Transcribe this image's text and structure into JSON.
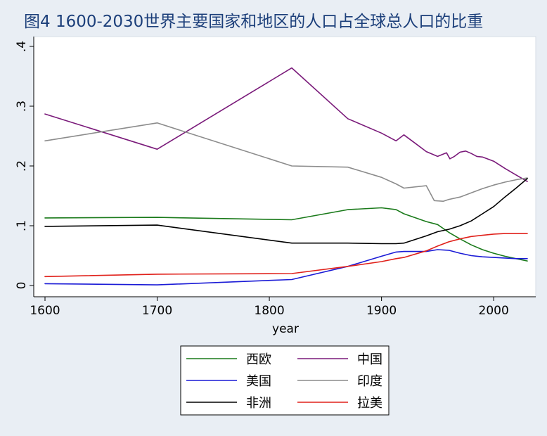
{
  "chart_data": {
    "type": "line",
    "title": "图4   1600-2030世界主要国家和地区的人口占全球总人口的比重",
    "xlabel": "year",
    "ylabel": "",
    "xlim": [
      1600,
      2030
    ],
    "ylim": [
      0,
      0.4
    ],
    "x_ticks": [
      1600,
      1700,
      1800,
      1900,
      2000
    ],
    "y_ticks": [
      0,
      0.1,
      0.2,
      0.3,
      0.4
    ],
    "y_tick_labels": [
      "0",
      ".1",
      ".2",
      ".3",
      ".4"
    ],
    "grid": false,
    "legend_position": "bottom",
    "series": [
      {
        "name": "西欧",
        "color": "#1a7a1a",
        "points": [
          [
            1600,
            0.113
          ],
          [
            1700,
            0.114
          ],
          [
            1820,
            0.11
          ],
          [
            1870,
            0.127
          ],
          [
            1900,
            0.13
          ],
          [
            1913,
            0.127
          ],
          [
            1920,
            0.12
          ],
          [
            1940,
            0.107
          ],
          [
            1950,
            0.102
          ],
          [
            1960,
            0.089
          ],
          [
            1970,
            0.078
          ],
          [
            1980,
            0.068
          ],
          [
            1990,
            0.06
          ],
          [
            2000,
            0.054
          ],
          [
            2010,
            0.049
          ],
          [
            2020,
            0.045
          ],
          [
            2030,
            0.041
          ]
        ]
      },
      {
        "name": "中国",
        "color": "#7a1a7a",
        "points": [
          [
            1600,
            0.287
          ],
          [
            1700,
            0.228
          ],
          [
            1820,
            0.364
          ],
          [
            1870,
            0.279
          ],
          [
            1900,
            0.255
          ],
          [
            1913,
            0.242
          ],
          [
            1920,
            0.252
          ],
          [
            1930,
            0.238
          ],
          [
            1940,
            0.224
          ],
          [
            1950,
            0.216
          ],
          [
            1958,
            0.222
          ],
          [
            1961,
            0.212
          ],
          [
            1965,
            0.216
          ],
          [
            1970,
            0.223
          ],
          [
            1975,
            0.225
          ],
          [
            1980,
            0.221
          ],
          [
            1985,
            0.216
          ],
          [
            1990,
            0.215
          ],
          [
            2000,
            0.208
          ],
          [
            2010,
            0.196
          ],
          [
            2020,
            0.185
          ],
          [
            2030,
            0.174
          ]
        ]
      },
      {
        "name": "美国",
        "color": "#1a1ad6",
        "points": [
          [
            1600,
            0.003
          ],
          [
            1700,
            0.001
          ],
          [
            1820,
            0.01
          ],
          [
            1870,
            0.032
          ],
          [
            1900,
            0.049
          ],
          [
            1913,
            0.056
          ],
          [
            1920,
            0.057
          ],
          [
            1940,
            0.057
          ],
          [
            1950,
            0.06
          ],
          [
            1960,
            0.059
          ],
          [
            1970,
            0.054
          ],
          [
            1980,
            0.05
          ],
          [
            1990,
            0.048
          ],
          [
            2000,
            0.047
          ],
          [
            2010,
            0.046
          ],
          [
            2020,
            0.045
          ],
          [
            2030,
            0.045
          ]
        ]
      },
      {
        "name": "印度",
        "color": "#8c8c8c",
        "points": [
          [
            1600,
            0.242
          ],
          [
            1700,
            0.272
          ],
          [
            1820,
            0.2
          ],
          [
            1870,
            0.198
          ],
          [
            1900,
            0.181
          ],
          [
            1913,
            0.17
          ],
          [
            1920,
            0.163
          ],
          [
            1940,
            0.167
          ],
          [
            1947,
            0.142
          ],
          [
            1955,
            0.141
          ],
          [
            1960,
            0.144
          ],
          [
            1970,
            0.148
          ],
          [
            1980,
            0.155
          ],
          [
            1990,
            0.162
          ],
          [
            2000,
            0.168
          ],
          [
            2010,
            0.173
          ],
          [
            2020,
            0.177
          ],
          [
            2030,
            0.18
          ]
        ]
      },
      {
        "name": "非洲",
        "color": "#000000",
        "points": [
          [
            1600,
            0.099
          ],
          [
            1700,
            0.101
          ],
          [
            1820,
            0.071
          ],
          [
            1870,
            0.071
          ],
          [
            1900,
            0.07
          ],
          [
            1913,
            0.07
          ],
          [
            1920,
            0.071
          ],
          [
            1940,
            0.083
          ],
          [
            1950,
            0.09
          ],
          [
            1960,
            0.094
          ],
          [
            1970,
            0.1
          ],
          [
            1980,
            0.108
          ],
          [
            1990,
            0.12
          ],
          [
            2000,
            0.132
          ],
          [
            2010,
            0.148
          ],
          [
            2020,
            0.163
          ],
          [
            2030,
            0.179
          ]
        ]
      },
      {
        "name": "拉美",
        "color": "#e0201a",
        "points": [
          [
            1600,
            0.015
          ],
          [
            1700,
            0.019
          ],
          [
            1820,
            0.02
          ],
          [
            1870,
            0.032
          ],
          [
            1900,
            0.04
          ],
          [
            1913,
            0.045
          ],
          [
            1920,
            0.047
          ],
          [
            1940,
            0.058
          ],
          [
            1950,
            0.066
          ],
          [
            1960,
            0.073
          ],
          [
            1970,
            0.078
          ],
          [
            1980,
            0.082
          ],
          [
            1990,
            0.084
          ],
          [
            2000,
            0.086
          ],
          [
            2010,
            0.087
          ],
          [
            2020,
            0.087
          ],
          [
            2030,
            0.087
          ]
        ]
      }
    ]
  }
}
